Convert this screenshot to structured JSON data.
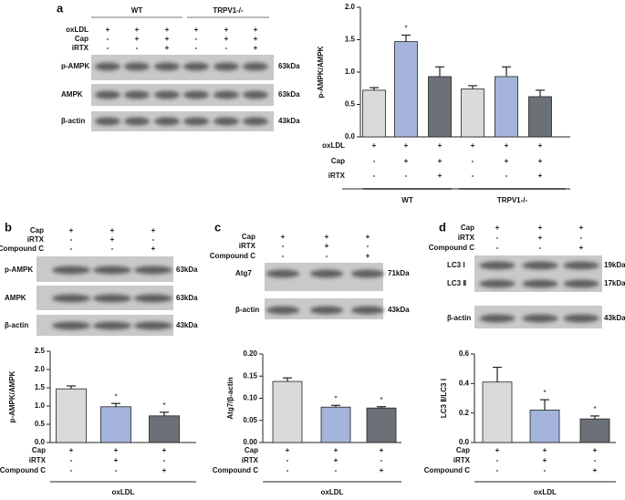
{
  "blots": [
    {
      "panel": "a",
      "groups": [
        "WT",
        "TRPV1-/-"
      ],
      "conditions": [
        {
          "label": "oxLDL",
          "signs": [
            "+",
            "+",
            "+",
            "+",
            "+",
            "+"
          ]
        },
        {
          "label": "Cap",
          "signs": [
            "-",
            "+",
            "+",
            "-",
            "+",
            "+"
          ]
        },
        {
          "label": "iRTX",
          "signs": [
            "-",
            "-",
            "+",
            "-",
            "-",
            "+"
          ]
        }
      ],
      "rows": [
        {
          "label": "p-AMPK",
          "size": "63kDa"
        },
        {
          "label": "AMPK",
          "size": "63kDa"
        },
        {
          "label": "β-actin",
          "size": "43kDa"
        }
      ]
    },
    {
      "panel": "b",
      "conditions": [
        {
          "label": "Cap",
          "signs": [
            "+",
            "+",
            "+"
          ]
        },
        {
          "label": "iRTX",
          "signs": [
            "-",
            "+",
            "-"
          ]
        },
        {
          "label": "Compound C",
          "signs": [
            "-",
            "-",
            "+"
          ]
        }
      ],
      "rows": [
        {
          "label": "p-AMPK",
          "size": "63kDa"
        },
        {
          "label": "AMPK",
          "size": "63kDa"
        },
        {
          "label": "β-actin",
          "size": "43kDa"
        }
      ]
    },
    {
      "panel": "c",
      "conditions": [
        {
          "label": "Cap",
          "signs": [
            "+",
            "+",
            "+"
          ]
        },
        {
          "label": "iRTX",
          "signs": [
            "-",
            "+",
            "-"
          ]
        },
        {
          "label": "Compound C",
          "signs": [
            "-",
            "-",
            "+"
          ]
        }
      ],
      "rows": [
        {
          "label": "Atg7",
          "size": "71kDa"
        },
        {
          "label": "β-actin",
          "size": "43kDa"
        }
      ]
    },
    {
      "panel": "d",
      "conditions": [
        {
          "label": "Cap",
          "signs": [
            "+",
            "+",
            "+"
          ]
        },
        {
          "label": "iRTX",
          "signs": [
            "-",
            "+",
            "-"
          ]
        },
        {
          "label": "Compound C",
          "signs": [
            "-",
            "-",
            "+"
          ]
        }
      ],
      "rows": [
        {
          "label": "LC3 Ⅰ",
          "size": "19kDa"
        },
        {
          "label": "LC3 Ⅱ",
          "size": "17kDa"
        },
        {
          "label": "β-actin",
          "size": "43kDa"
        }
      ]
    }
  ],
  "chart_data": [
    {
      "type": "bar",
      "y_label": "p-AMPK/AMPK",
      "values": [
        0.72,
        1.47,
        0.93,
        0.74,
        0.93,
        0.62
      ],
      "errors": [
        0.04,
        0.1,
        0.15,
        0.05,
        0.15,
        0.1
      ],
      "colors": [
        "#d9dadc",
        "#a4b4da",
        "#6c7077",
        "#d9dadc",
        "#a4b4da",
        "#6c7077"
      ],
      "annotations": [
        {
          "index": 1,
          "text": "*"
        }
      ],
      "ylim": [
        0,
        2
      ],
      "yticks": [
        {
          "value": 0,
          "label": "0.0"
        },
        {
          "value": 0.5,
          "label": "0.5"
        },
        {
          "value": 1,
          "label": "1.0"
        },
        {
          "value": 1.5,
          "label": "1.5"
        },
        {
          "value": 2,
          "label": "2.0"
        }
      ],
      "conditions": [
        {
          "label": "oxLDL",
          "signs": [
            "+",
            "+",
            "+",
            "+",
            "+",
            "+"
          ]
        },
        {
          "label": "Cap",
          "signs": [
            "-",
            "+",
            "+",
            "-",
            "+",
            "+"
          ]
        },
        {
          "label": "iRTX",
          "signs": [
            "-",
            "-",
            "+",
            "-",
            "-",
            "+"
          ]
        }
      ],
      "groups": [
        "WT",
        "TRPV1-/-"
      ]
    },
    {
      "type": "bar",
      "y_label": "p-AMPK/AMPK",
      "values": [
        1.47,
        0.98,
        0.73
      ],
      "errors": [
        0.08,
        0.09,
        0.1
      ],
      "colors": [
        "#d9dadc",
        "#a4b4da",
        "#6c7077"
      ],
      "annotations": [
        {
          "index": 1,
          "text": "*"
        },
        {
          "index": 2,
          "text": "*"
        }
      ],
      "ylim": [
        0,
        2.5
      ],
      "yticks": [
        {
          "value": 0,
          "label": "0.0"
        },
        {
          "value": 0.5,
          "label": "0.5"
        },
        {
          "value": 1,
          "label": "1.0"
        },
        {
          "value": 1.5,
          "label": "1.5"
        },
        {
          "value": 2,
          "label": "2.0"
        },
        {
          "value": 2.5,
          "label": "2.5"
        }
      ],
      "conditions": [
        {
          "label": "Cap",
          "signs": [
            "+",
            "+",
            "+"
          ]
        },
        {
          "label": "iRTX",
          "signs": [
            "-",
            "+",
            "-"
          ]
        },
        {
          "label": "Compound C",
          "signs": [
            "-",
            "-",
            "+"
          ]
        }
      ],
      "groups": [
        "oxLDL"
      ]
    },
    {
      "type": "bar",
      "y_label": "Atg7/β-actin",
      "values": [
        0.138,
        0.08,
        0.078
      ],
      "errors": [
        0.008,
        0.004,
        0.003
      ],
      "colors": [
        "#d9dadc",
        "#a4b4da",
        "#6c7077"
      ],
      "annotations": [
        {
          "index": 1,
          "text": "*"
        },
        {
          "index": 2,
          "text": "*"
        }
      ],
      "ylim": [
        0,
        0.2
      ],
      "yticks": [
        {
          "value": 0,
          "label": "0.00"
        },
        {
          "value": 0.05,
          "label": "0.05"
        },
        {
          "value": 0.1,
          "label": "0.10"
        },
        {
          "value": 0.15,
          "label": "0.15"
        },
        {
          "value": 0.2,
          "label": "0.20"
        }
      ],
      "conditions": [
        {
          "label": "Cap",
          "signs": [
            "+",
            "+",
            "+"
          ]
        },
        {
          "label": "iRTX",
          "signs": [
            "-",
            "+",
            "-"
          ]
        },
        {
          "label": "Compound C",
          "signs": [
            "-",
            "-",
            "+"
          ]
        }
      ],
      "groups": [
        "oxLDL"
      ]
    },
    {
      "type": "bar",
      "y_label": "LC3 Ⅱ/LC3 Ⅰ",
      "values": [
        0.41,
        0.22,
        0.16
      ],
      "errors": [
        0.1,
        0.07,
        0.02
      ],
      "colors": [
        "#d9dadc",
        "#a4b4da",
        "#6c7077"
      ],
      "annotations": [
        {
          "index": 1,
          "text": "*"
        },
        {
          "index": 2,
          "text": "*"
        }
      ],
      "ylim": [
        0,
        0.6
      ],
      "yticks": [
        {
          "value": 0,
          "label": "0.0"
        },
        {
          "value": 0.2,
          "label": "0.2"
        },
        {
          "value": 0.4,
          "label": "0.4"
        },
        {
          "value": 0.6,
          "label": "0.6"
        }
      ],
      "conditions": [
        {
          "label": "Cap",
          "signs": [
            "+",
            "+",
            "+"
          ]
        },
        {
          "label": "iRTX",
          "signs": [
            "-",
            "+",
            "-"
          ]
        },
        {
          "label": "Compound C",
          "signs": [
            "-",
            "-",
            "+"
          ]
        }
      ],
      "groups": [
        "oxLDL"
      ]
    }
  ]
}
